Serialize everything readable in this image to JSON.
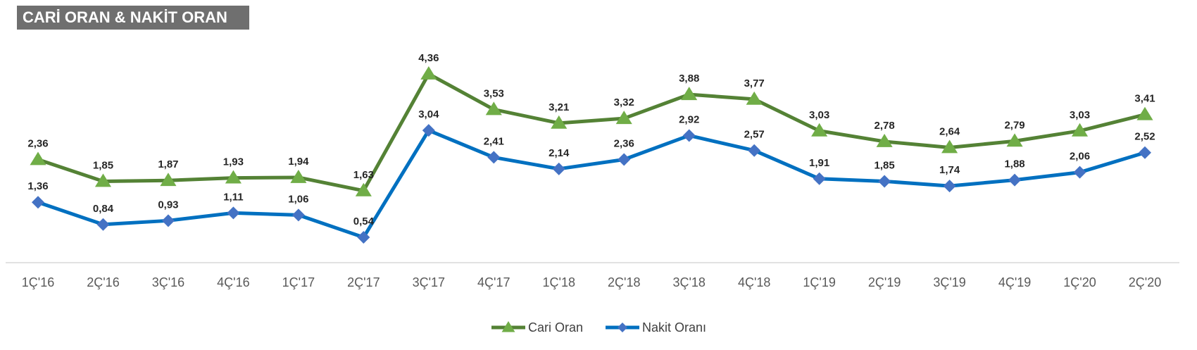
{
  "title": "CARİ ORAN & NAKİT ORAN",
  "chart_data": {
    "type": "line",
    "categories": [
      "1Ç'16",
      "2Ç'16",
      "3Ç'16",
      "4Ç'16",
      "1Ç'17",
      "2Ç'17",
      "3Ç'17",
      "4Ç'17",
      "1Ç'18",
      "2Ç'18",
      "3Ç'18",
      "4Ç'18",
      "1Ç'19",
      "2Ç'19",
      "3Ç'19",
      "4Ç'19",
      "1Ç'20",
      "2Ç'20"
    ],
    "series": [
      {
        "name": "Cari Oran",
        "values": [
          2.36,
          1.85,
          1.87,
          1.93,
          1.94,
          1.63,
          4.36,
          3.53,
          3.21,
          3.32,
          3.88,
          3.77,
          3.03,
          2.78,
          2.64,
          2.79,
          3.03,
          3.41
        ],
        "labels": [
          "2,36",
          "1,85",
          "1,87",
          "1,93",
          "1,94",
          "1,63",
          "4,36",
          "3,53",
          "3,21",
          "3,32",
          "3,88",
          "3,77",
          "3,03",
          "2,78",
          "2,64",
          "2,79",
          "3,03",
          "3,41"
        ],
        "color": "#548235",
        "marker_color": "#70ad47",
        "marker": "triangle"
      },
      {
        "name": "Nakit Oranı",
        "values": [
          1.36,
          0.84,
          0.93,
          1.11,
          1.06,
          0.54,
          3.04,
          2.41,
          2.14,
          2.36,
          2.92,
          2.57,
          1.91,
          1.85,
          1.74,
          1.88,
          2.06,
          2.52
        ],
        "labels": [
          "1,36",
          "0,84",
          "0,93",
          "1,11",
          "1,06",
          "0,54",
          "3,04",
          "2,41",
          "2,14",
          "2,36",
          "2,92",
          "2,57",
          "1,91",
          "1,85",
          "1,74",
          "1,88",
          "2,06",
          "2,52"
        ],
        "color": "#0070c0",
        "marker_color": "#4472c4",
        "marker": "diamond"
      }
    ],
    "legend": "bottom-center",
    "grid": false
  }
}
